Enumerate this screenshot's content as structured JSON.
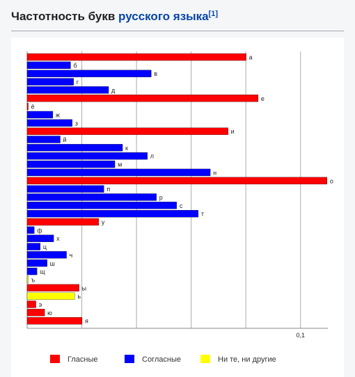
{
  "header": {
    "title_plain": "Частотность букв ",
    "title_link": "русского языка",
    "footnote": "[1]"
  },
  "colors": {
    "vowel": "#ff0000",
    "consonant": "#0000ff",
    "neither": "#ffff00",
    "grid": "#aaaaaa"
  },
  "chart_data": {
    "type": "bar",
    "orientation": "horizontal",
    "title": "",
    "xlabel": "",
    "ylabel": "",
    "xlim": [
      0,
      0.11
    ],
    "x_tick_labels": [
      {
        "value": 0.1,
        "label": "0,1"
      }
    ],
    "grid": true,
    "legend_position": "bottom",
    "legend": [
      {
        "key": "vowel",
        "label": "Гласные"
      },
      {
        "key": "consonant",
        "label": "Согласные"
      },
      {
        "key": "neither",
        "label": "Ни те, ни другие"
      }
    ],
    "bars": [
      {
        "letter": "а",
        "value": 0.0801,
        "group": "vowel"
      },
      {
        "letter": "б",
        "value": 0.0159,
        "group": "consonant"
      },
      {
        "letter": "в",
        "value": 0.0454,
        "group": "consonant"
      },
      {
        "letter": "г",
        "value": 0.017,
        "group": "consonant"
      },
      {
        "letter": "д",
        "value": 0.0298,
        "group": "consonant"
      },
      {
        "letter": "е",
        "value": 0.0845,
        "group": "vowel"
      },
      {
        "letter": "ё",
        "value": 0.0004,
        "group": "vowel"
      },
      {
        "letter": "ж",
        "value": 0.0094,
        "group": "consonant"
      },
      {
        "letter": "з",
        "value": 0.0165,
        "group": "consonant"
      },
      {
        "letter": "и",
        "value": 0.0735,
        "group": "vowel"
      },
      {
        "letter": "й",
        "value": 0.0121,
        "group": "consonant"
      },
      {
        "letter": "к",
        "value": 0.0349,
        "group": "consonant"
      },
      {
        "letter": "л",
        "value": 0.044,
        "group": "consonant"
      },
      {
        "letter": "м",
        "value": 0.0321,
        "group": "consonant"
      },
      {
        "letter": "н",
        "value": 0.067,
        "group": "consonant"
      },
      {
        "letter": "о",
        "value": 0.1097,
        "group": "vowel"
      },
      {
        "letter": "п",
        "value": 0.0281,
        "group": "consonant"
      },
      {
        "letter": "р",
        "value": 0.0473,
        "group": "consonant"
      },
      {
        "letter": "с",
        "value": 0.0547,
        "group": "consonant"
      },
      {
        "letter": "т",
        "value": 0.0626,
        "group": "consonant"
      },
      {
        "letter": "у",
        "value": 0.0262,
        "group": "vowel"
      },
      {
        "letter": "ф",
        "value": 0.0026,
        "group": "consonant"
      },
      {
        "letter": "х",
        "value": 0.0097,
        "group": "consonant"
      },
      {
        "letter": "ц",
        "value": 0.0048,
        "group": "consonant"
      },
      {
        "letter": "ч",
        "value": 0.0144,
        "group": "consonant"
      },
      {
        "letter": "ш",
        "value": 0.0073,
        "group": "consonant"
      },
      {
        "letter": "щ",
        "value": 0.0036,
        "group": "consonant"
      },
      {
        "letter": "ъ",
        "value": 0.0004,
        "group": "neither"
      },
      {
        "letter": "ы",
        "value": 0.019,
        "group": "vowel"
      },
      {
        "letter": "ь",
        "value": 0.0174,
        "group": "neither"
      },
      {
        "letter": "э",
        "value": 0.0032,
        "group": "vowel"
      },
      {
        "letter": "ю",
        "value": 0.0064,
        "group": "vowel"
      },
      {
        "letter": "я",
        "value": 0.0201,
        "group": "vowel"
      }
    ]
  }
}
